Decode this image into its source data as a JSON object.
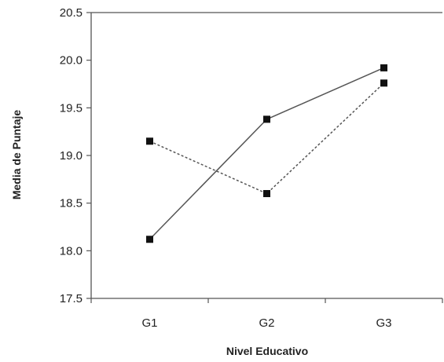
{
  "chart_data": {
    "type": "line",
    "title": "",
    "xlabel": "Nivel Educativo",
    "ylabel": "Media de Puntaje",
    "categories": [
      "G1",
      "G2",
      "G3"
    ],
    "ylim": [
      17.5,
      20.5
    ],
    "yticks": [
      "17.5",
      "18.0",
      "18.5",
      "19.0",
      "19.5",
      "20.0",
      "20.5"
    ],
    "grid": false,
    "legend": "none",
    "series": [
      {
        "style": "solid",
        "color": "#555555",
        "marker": "square",
        "values": [
          18.12,
          19.38,
          19.92
        ]
      },
      {
        "style": "dashed",
        "color": "#555555",
        "marker": "square",
        "values": [
          19.15,
          18.6,
          19.76
        ]
      }
    ]
  }
}
